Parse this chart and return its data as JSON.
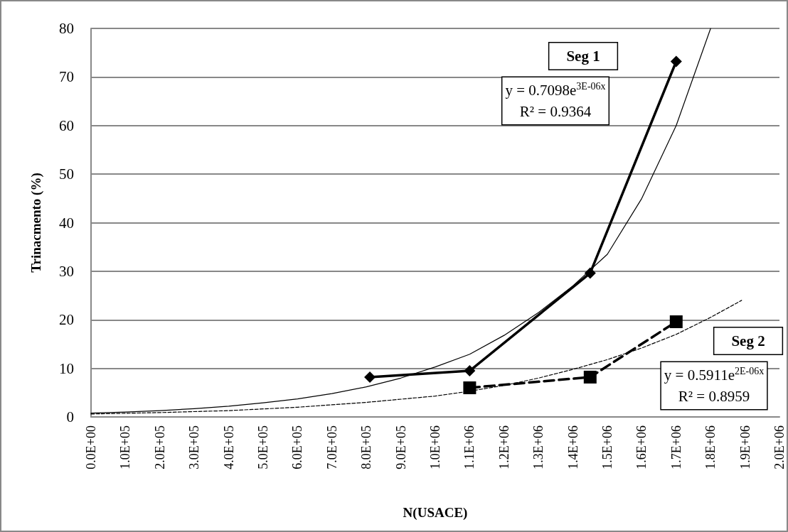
{
  "chart_data": {
    "type": "line",
    "xlabel": "N(USACE)",
    "ylabel": "Trinacmento (%)",
    "xlim": [
      0,
      2000000
    ],
    "ylim": [
      0,
      80
    ],
    "xticks": [
      {
        "value": 0,
        "label": "0.0E+00"
      },
      {
        "value": 100000,
        "label": "1.0E+05"
      },
      {
        "value": 200000,
        "label": "2.0E+05"
      },
      {
        "value": 300000,
        "label": "3.0E+05"
      },
      {
        "value": 400000,
        "label": "4.0E+05"
      },
      {
        "value": 500000,
        "label": "5.0E+05"
      },
      {
        "value": 600000,
        "label": "6.0E+05"
      },
      {
        "value": 700000,
        "label": "7.0E+05"
      },
      {
        "value": 800000,
        "label": "8.0E+05"
      },
      {
        "value": 900000,
        "label": "9.0E+05"
      },
      {
        "value": 1000000,
        "label": "1.0E+06"
      },
      {
        "value": 1100000,
        "label": "1.1E+06"
      },
      {
        "value": 1200000,
        "label": "1.2E+06"
      },
      {
        "value": 1300000,
        "label": "1.3E+06"
      },
      {
        "value": 1400000,
        "label": "1.4E+06"
      },
      {
        "value": 1500000,
        "label": "1.5E+06"
      },
      {
        "value": 1600000,
        "label": "1.6E+06"
      },
      {
        "value": 1700000,
        "label": "1.7E+06"
      },
      {
        "value": 1800000,
        "label": "1.8E+06"
      },
      {
        "value": 1900000,
        "label": "1.9E+06"
      },
      {
        "value": 2000000,
        "label": "2.0E+06"
      }
    ],
    "yticks": [
      0,
      10,
      20,
      30,
      40,
      50,
      60,
      70,
      80
    ],
    "grid": "y",
    "legend": false,
    "series": [
      {
        "name": "Seg 1",
        "color": "#000000",
        "marker": "diamond",
        "line_style": "solid",
        "x": [
          810000,
          1100000,
          1450000,
          1700000
        ],
        "values": [
          8.2,
          9.5,
          29.6,
          73.2
        ]
      },
      {
        "name": "Seg 2",
        "color": "#000000",
        "marker": "square",
        "line_style": "dashed",
        "x": [
          1100000,
          1450000,
          1700000
        ],
        "values": [
          6.0,
          8.2,
          19.6
        ]
      },
      {
        "color": "#000000",
        "marker": "none",
        "line_style": "solid",
        "x": [
          0,
          100000,
          200000,
          300000,
          400000,
          500000,
          600000,
          700000,
          800000,
          900000,
          1000000,
          1100000,
          1200000,
          1300000,
          1400000,
          1500000,
          1600000,
          1700000,
          1800000
        ],
        "values": [
          0.8,
          1.0,
          1.3,
          1.7,
          2.2,
          2.9,
          3.7,
          4.8,
          6.2,
          8.0,
          10.3,
          12.9,
          16.8,
          21.5,
          27.0,
          33.5,
          45.0,
          60.0,
          80.0
        ]
      },
      {
        "color": "#000000",
        "marker": "none",
        "line_style": "dashed",
        "x": [
          0,
          200000,
          400000,
          600000,
          800000,
          1000000,
          1100000,
          1200000,
          1300000,
          1400000,
          1500000,
          1600000,
          1700000,
          1800000,
          1890000
        ],
        "values": [
          0.6,
          0.9,
          1.3,
          2.0,
          3.0,
          4.3,
          5.3,
          6.5,
          8.0,
          9.8,
          11.8,
          14.2,
          17.0,
          20.5,
          24.0
        ]
      }
    ],
    "annotations": [
      "y = 0.7098e$^{3E-06x}$\nR² = 0.9364",
      "y = 0.5911e$^{2E-06x}$\nR² = 0.8959"
    ]
  }
}
